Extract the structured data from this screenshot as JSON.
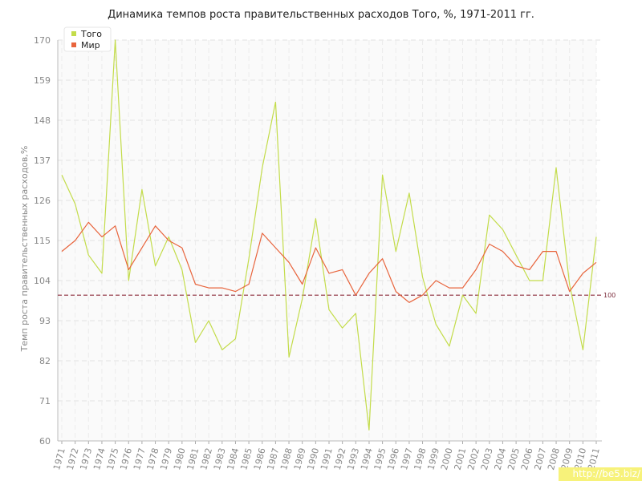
{
  "chart_data": {
    "type": "line",
    "title": "Динамика темпов роста правительственных расходов Того, %, 1971-2011 гг.",
    "ylabel": "Темп роста правительственных расходов,%",
    "xlabel": "",
    "ylim": [
      60,
      170
    ],
    "yticks": [
      "60",
      "71",
      "82",
      "93",
      "104",
      "115",
      "126",
      "137",
      "148",
      "159",
      "170"
    ],
    "x": [
      "1971",
      "1972",
      "1973",
      "1974",
      "1975",
      "1976",
      "1977",
      "1978",
      "1979",
      "1980",
      "1981",
      "1982",
      "1983",
      "1984",
      "1985",
      "1986",
      "1987",
      "1988",
      "1989",
      "1990",
      "1991",
      "1992",
      "1993",
      "1994",
      "1995",
      "1996",
      "1997",
      "1998",
      "1999",
      "2000",
      "2001",
      "2002",
      "2003",
      "2004",
      "2005",
      "2006",
      "2007",
      "2008",
      "2009",
      "2010",
      "2011"
    ],
    "series": [
      {
        "name": "Того",
        "color": "#c3dc4a",
        "values": [
          133,
          125,
          111,
          106,
          170,
          104,
          129,
          108,
          116,
          107,
          87,
          93,
          85,
          88,
          110,
          135,
          153,
          83,
          99,
          121,
          96,
          91,
          95,
          63,
          133,
          112,
          128,
          105,
          92,
          86,
          100,
          95,
          122,
          118,
          111,
          104,
          104,
          135,
          103,
          85,
          116
        ]
      },
      {
        "name": "Мир",
        "color": "#e8643c",
        "values": [
          112,
          115,
          120,
          116,
          119,
          107,
          113,
          119,
          115,
          113,
          103,
          102,
          102,
          101,
          103,
          117,
          113,
          109,
          103,
          113,
          106,
          107,
          100,
          106,
          110,
          101,
          98,
          100,
          104,
          102,
          102,
          107,
          114,
          112,
          108,
          107,
          112,
          112,
          101,
          106,
          109
        ]
      }
    ],
    "reference_line": {
      "value": 100,
      "label": "100",
      "color": "#8b2a3a"
    },
    "legend": {
      "position": "top-left"
    },
    "grid": true
  },
  "watermark": "http://be5.biz/"
}
